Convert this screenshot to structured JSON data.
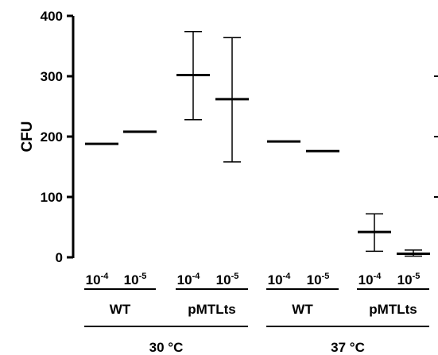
{
  "chart_data": {
    "type": "scatter",
    "ylabel": "CFU",
    "ylim": [
      0,
      400
    ],
    "yticks": [
      "0",
      "100",
      "200",
      "300",
      "400"
    ],
    "grid": false,
    "dilution_labels": [
      {
        "base": "10",
        "exp": "-4"
      },
      {
        "base": "10",
        "exp": "-5"
      },
      {
        "base": "10",
        "exp": "-4"
      },
      {
        "base": "10",
        "exp": "-5"
      },
      {
        "base": "10",
        "exp": "-4"
      },
      {
        "base": "10",
        "exp": "-5"
      },
      {
        "base": "10",
        "exp": "-4"
      },
      {
        "base": "10",
        "exp": "-5"
      }
    ],
    "groups": [
      {
        "label": "WT",
        "members": [
          0,
          1
        ]
      },
      {
        "label": "pMTLts",
        "members": [
          2,
          3
        ]
      },
      {
        "label": "WT",
        "members": [
          4,
          5
        ]
      },
      {
        "label": "pMTLts",
        "members": [
          6,
          7
        ]
      }
    ],
    "temperatures": [
      {
        "label": "30 °C",
        "members": [
          0,
          1,
          2,
          3
        ]
      },
      {
        "label": "37 °C",
        "members": [
          4,
          5,
          6,
          7
        ]
      }
    ],
    "series": [
      {
        "mean": [
          188,
          208,
          302,
          262,
          192,
          176,
          42,
          6
        ],
        "error_low": [
          null,
          null,
          228,
          158,
          null,
          null,
          10,
          2
        ],
        "error_high": [
          null,
          null,
          374,
          364,
          null,
          null,
          72,
          12
        ]
      }
    ]
  }
}
